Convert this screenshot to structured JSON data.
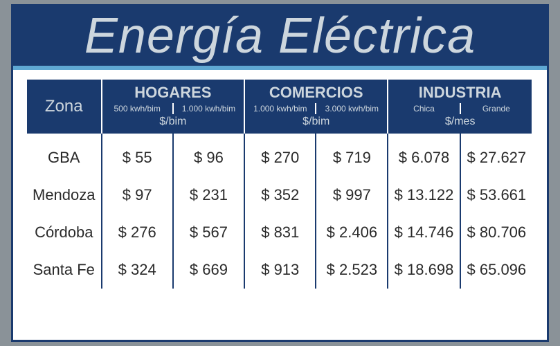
{
  "title": "Energía Eléctrica",
  "colors": {
    "header_bg": "#1a3a6e",
    "header_text": "#cdd6dd",
    "accent_bar": "#5fa8d3",
    "page_bg": "#8a9298",
    "cell_text": "#2a2a2a",
    "border": "#1a3a6e"
  },
  "header": {
    "zona": "Zona",
    "groups": [
      {
        "label": "HOGARES",
        "sub": [
          "500 kwh/bim",
          "1.000 kwh/bim"
        ],
        "unit": "$/bim"
      },
      {
        "label": "COMERCIOS",
        "sub": [
          "1.000 kwh/bim",
          "3.000 kwh/bim"
        ],
        "unit": "$/bim"
      },
      {
        "label": "INDUSTRIA",
        "sub": [
          "Chica",
          "Grande"
        ],
        "unit": "$/mes"
      }
    ]
  },
  "rows": [
    {
      "zone": "GBA",
      "v": [
        "$ 55",
        "$ 96",
        "$ 270",
        "$ 719",
        "$ 6.078",
        "$ 27.627"
      ]
    },
    {
      "zone": "Mendoza",
      "v": [
        "$ 97",
        "$ 231",
        "$ 352",
        "$ 997",
        "$ 13.122",
        "$ 53.661"
      ]
    },
    {
      "zone": "Córdoba",
      "v": [
        "$ 276",
        "$ 567",
        "$ 831",
        "$ 2.406",
        "$ 14.746",
        "$ 80.706"
      ]
    },
    {
      "zone": "Santa Fe",
      "v": [
        "$ 324",
        "$ 669",
        "$ 913",
        "$ 2.523",
        "$ 18.698",
        "$ 65.096"
      ]
    }
  ]
}
